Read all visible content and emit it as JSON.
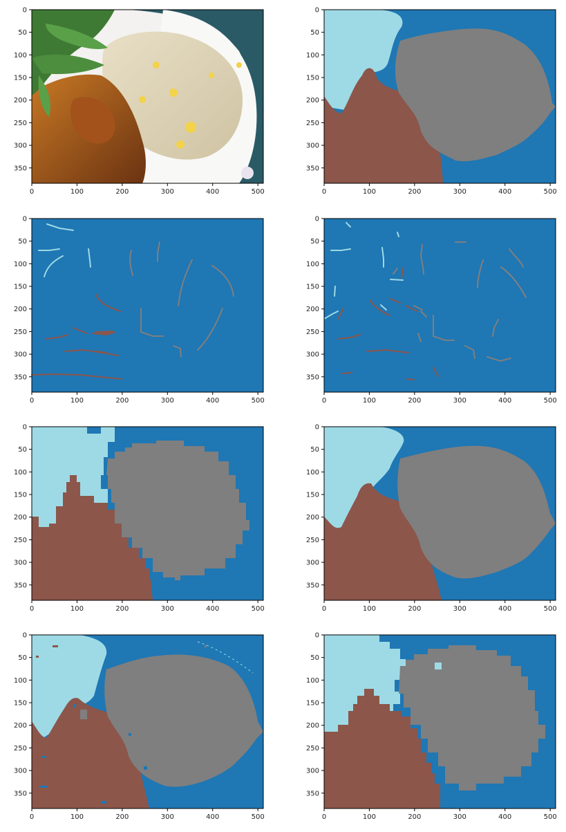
{
  "figure": {
    "x_ticks": [
      "0",
      "100",
      "200",
      "300",
      "400",
      "500"
    ],
    "y_ticks": [
      "0",
      "50",
      "100",
      "150",
      "200",
      "250",
      "300",
      "350"
    ]
  },
  "colors": {
    "background": "#1f77b4",
    "food_left": "#9edae5",
    "meat": "#8c564b",
    "rice": "#7f7f7f"
  },
  "panels": [
    {
      "kind": "photo",
      "description_icon": "food-photo-icon"
    },
    {
      "kind": "segmentation-smooth"
    },
    {
      "kind": "scribbles-sparse"
    },
    {
      "kind": "scribbles-dense"
    },
    {
      "kind": "segmentation-blocky-coarse"
    },
    {
      "kind": "segmentation-smooth-refined"
    },
    {
      "kind": "segmentation-noisy"
    },
    {
      "kind": "segmentation-blocky"
    }
  ]
}
